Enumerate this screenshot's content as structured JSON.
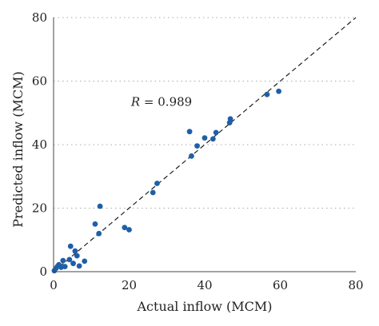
{
  "chart_data": {
    "type": "scatter",
    "xlabel": "Actual inflow (MCM)",
    "ylabel": "Predicted inflow (MCM)",
    "xlim": [
      0,
      80
    ],
    "ylim": [
      0,
      80
    ],
    "x_ticks": [
      "0",
      "20",
      "40",
      "60",
      "80"
    ],
    "y_ticks": [
      "0",
      "20",
      "40",
      "60",
      "80"
    ],
    "grid": "horizontal dotted",
    "reference_line": "y = x (dashed)",
    "annotation": {
      "symbol": "R",
      "text": " = 0.989"
    },
    "colors": {
      "points": "#1f5fa8",
      "grid": "#aaaaaa",
      "reference": "#222222"
    },
    "points": [
      {
        "x": 0.2,
        "y": 0.3
      },
      {
        "x": 0.6,
        "y": 1.0
      },
      {
        "x": 1.0,
        "y": 1.6
      },
      {
        "x": 1.4,
        "y": 2.2
      },
      {
        "x": 2.0,
        "y": 1.4
      },
      {
        "x": 2.5,
        "y": 3.5
      },
      {
        "x": 3.0,
        "y": 1.6
      },
      {
        "x": 4.2,
        "y": 3.8
      },
      {
        "x": 4.5,
        "y": 8.0
      },
      {
        "x": 5.2,
        "y": 2.6
      },
      {
        "x": 5.7,
        "y": 6.5
      },
      {
        "x": 6.2,
        "y": 5.0
      },
      {
        "x": 6.8,
        "y": 1.8
      },
      {
        "x": 8.2,
        "y": 3.3
      },
      {
        "x": 11.0,
        "y": 15.0
      },
      {
        "x": 12.0,
        "y": 12.0
      },
      {
        "x": 12.3,
        "y": 20.6
      },
      {
        "x": 18.8,
        "y": 13.9
      },
      {
        "x": 20.0,
        "y": 13.2
      },
      {
        "x": 26.3,
        "y": 24.9
      },
      {
        "x": 27.4,
        "y": 27.8
      },
      {
        "x": 36.0,
        "y": 44.1
      },
      {
        "x": 36.5,
        "y": 36.4
      },
      {
        "x": 38.0,
        "y": 39.6
      },
      {
        "x": 40.0,
        "y": 42.1
      },
      {
        "x": 42.2,
        "y": 41.8
      },
      {
        "x": 43.0,
        "y": 43.8
      },
      {
        "x": 46.6,
        "y": 46.9
      },
      {
        "x": 46.8,
        "y": 48.1
      },
      {
        "x": 56.5,
        "y": 55.8
      },
      {
        "x": 59.6,
        "y": 56.8
      }
    ]
  }
}
